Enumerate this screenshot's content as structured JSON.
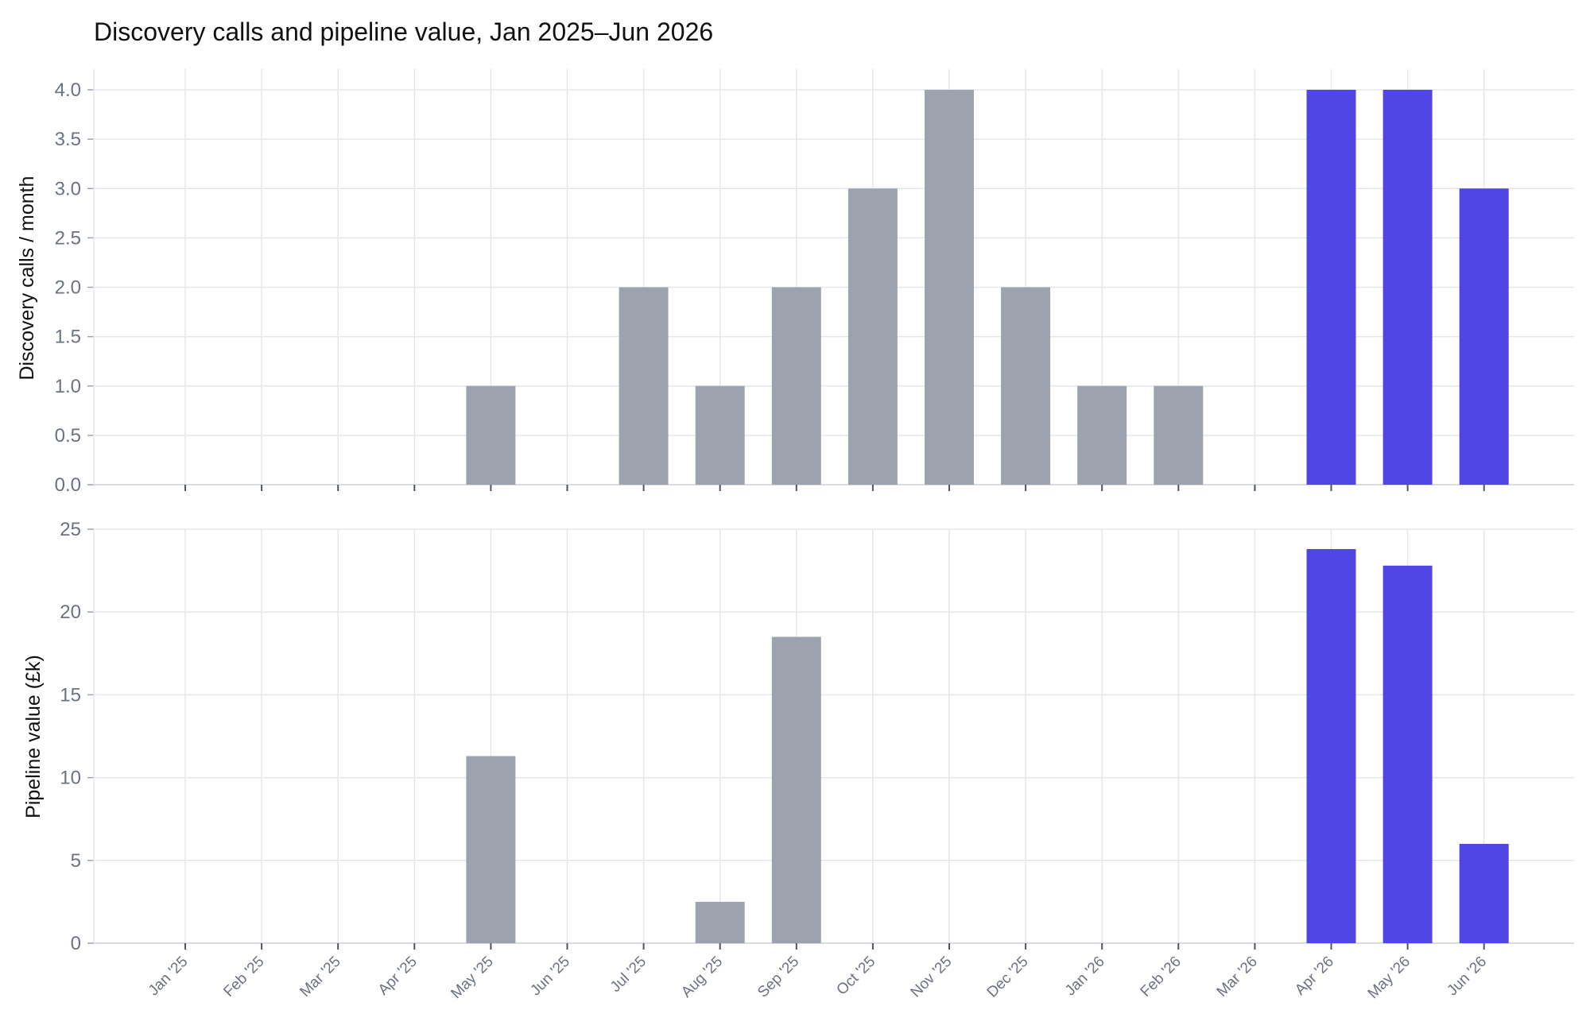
{
  "chart_data": [
    {
      "type": "bar",
      "title": "Discovery calls and pipeline value, Jan 2025–Jun 2026",
      "categories": [
        "Jan '25",
        "Feb '25",
        "Mar '25",
        "Apr '25",
        "May '25",
        "Jun '25",
        "Jul '25",
        "Aug '25",
        "Sep '25",
        "Oct '25",
        "Nov '25",
        "Dec '25",
        "Jan '26",
        "Feb '26",
        "Mar '26",
        "Apr '26",
        "May '26",
        "Jun '26"
      ],
      "values": [
        0,
        0,
        0,
        0,
        1,
        0,
        2,
        1,
        2,
        3,
        4,
        2,
        1,
        1,
        0,
        4,
        4,
        3
      ],
      "ylabel": "Discovery calls / month",
      "ylim": [
        0,
        4.0
      ],
      "yticks": [
        "0.0",
        "0.5",
        "1.0",
        "1.5",
        "2.0",
        "2.5",
        "3.0",
        "3.5",
        "4.0"
      ],
      "grid": true,
      "colors": {
        "default": "#9ca3af",
        "highlight": "#4f46e5"
      },
      "highlight_categories": [
        "Apr '26",
        "May '26",
        "Jun '26"
      ]
    },
    {
      "type": "bar",
      "categories": [
        "Jan '25",
        "Feb '25",
        "Mar '25",
        "Apr '25",
        "May '25",
        "Jun '25",
        "Jul '25",
        "Aug '25",
        "Sep '25",
        "Oct '25",
        "Nov '25",
        "Dec '25",
        "Jan '26",
        "Feb '26",
        "Mar '26",
        "Apr '26",
        "May '26",
        "Jun '26"
      ],
      "values": [
        0,
        0,
        0,
        0,
        11.3,
        0,
        0,
        2.5,
        18.5,
        0,
        0,
        0,
        0,
        0,
        0,
        23.8,
        22.8,
        6.0
      ],
      "ylabel": "Pipeline value (£k)",
      "xlabel": "",
      "ylim": [
        0,
        25
      ],
      "yticks": [
        "0",
        "5",
        "10",
        "15",
        "20",
        "25"
      ],
      "grid": true,
      "colors": {
        "default": "#9ca3af",
        "highlight": "#4f46e5"
      },
      "highlight_categories": [
        "Apr '26",
        "May '26",
        "Jun '26"
      ]
    }
  ]
}
